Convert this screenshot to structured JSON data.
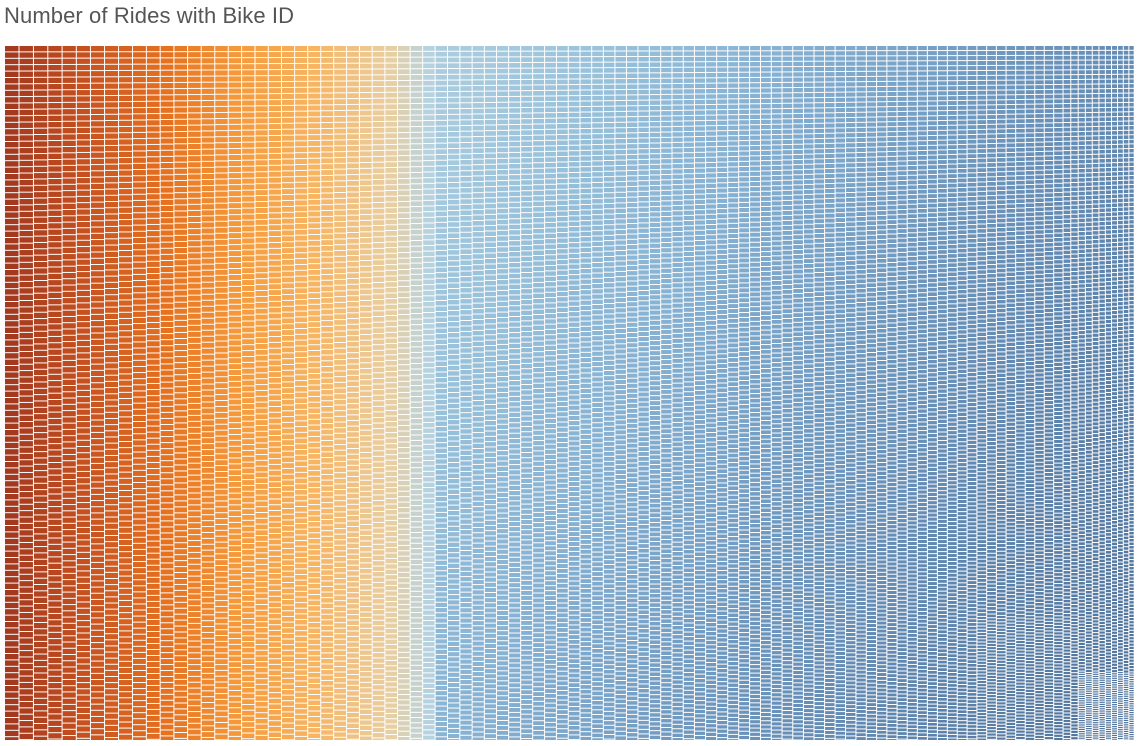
{
  "chart_data": {
    "type": "heatmap",
    "title": "Number of Rides with Bike ID",
    "color_scale": {
      "name": "orange-blue diverging",
      "stops": [
        "#a3391f",
        "#c8521f",
        "#e5701f",
        "#f59a3a",
        "#f7b562",
        "#e8cfa3",
        "#b8d3df",
        "#9cc4dc",
        "#86b1d2",
        "#6f98bf",
        "#5d84ad",
        "#4f729a"
      ]
    },
    "grid": false,
    "legend": "none"
  }
}
